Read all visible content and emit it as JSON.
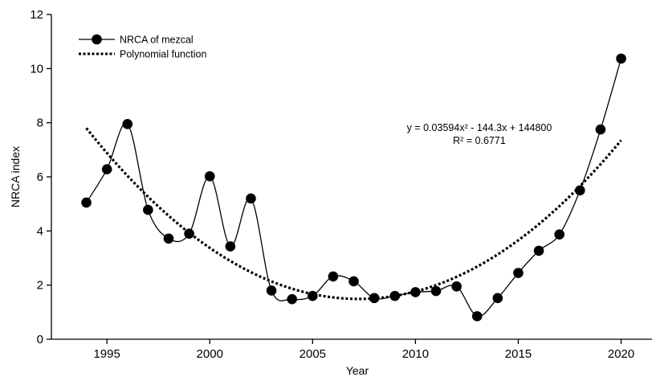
{
  "chart_data": {
    "type": "line",
    "xlabel": "Year",
    "ylabel": "NRCA index",
    "xlim": [
      1992.3,
      2021.5
    ],
    "ylim": [
      0,
      12
    ],
    "xticks": [
      1995,
      2000,
      2005,
      2010,
      2015,
      2020
    ],
    "yticks": [
      0,
      2,
      4,
      6,
      8,
      10,
      12
    ],
    "x_tick_labels": [
      "1995",
      "2000",
      "2005",
      "2010",
      "2015",
      "2020"
    ],
    "y_tick_labels": [
      "0",
      "2",
      "4",
      "6",
      "8",
      "10",
      "12"
    ],
    "grid": false,
    "legend_position": "top-left",
    "series": [
      {
        "name": "NRCA of mezcal",
        "style": "line-with-markers",
        "color": "#000000",
        "x": [
          1994,
          1995,
          1996,
          1997,
          1998,
          1999,
          2000,
          2001,
          2002,
          2003,
          2004,
          2005,
          2006,
          2007,
          2008,
          2009,
          2010,
          2011,
          2012,
          2013,
          2014,
          2015,
          2016,
          2017,
          2018,
          2019,
          2020
        ],
        "y": [
          5.05,
          6.28,
          7.95,
          4.78,
          3.72,
          3.9,
          6.02,
          3.43,
          5.2,
          1.8,
          1.48,
          1.6,
          2.32,
          2.14,
          1.52,
          1.6,
          1.74,
          1.78,
          1.95,
          0.85,
          1.52,
          2.45,
          3.27,
          3.87,
          5.5,
          7.75,
          10.37
        ]
      },
      {
        "name": "Polynomial function",
        "style": "dotted",
        "color": "#000000",
        "x_start": 1994,
        "x_end": 2020,
        "coefficients": {
          "a": 0.03594,
          "b": -144.3,
          "c": 144800
        },
        "fitted_at_ends": [
          7.8,
          7.35
        ],
        "min_value": 1.5,
        "min_year": 2007.8
      }
    ],
    "annotations": [
      "y = 0.03594x² - 144.3x + 144800",
      "R² = 0.6771"
    ]
  }
}
